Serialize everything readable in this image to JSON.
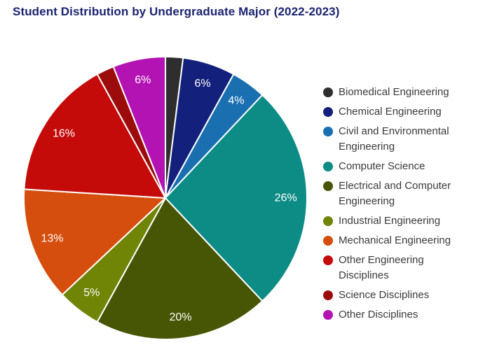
{
  "title": "Student Distribution by Undergraduate Major (2022-2023)",
  "chart_data": {
    "type": "pie",
    "title": "Student Distribution by Undergraduate Major (2022-2023)",
    "categories": [
      "Biomedical Engineering",
      "Chemical Engineering",
      "Civil and Environmental Engineering",
      "Computer Science",
      "Electrical and Computer Engineering",
      "Industrial Engineering",
      "Mechanical Engineering",
      "Other Engineering Disciplines",
      "Science Disciplines",
      "Other Disciplines"
    ],
    "values": [
      2,
      6,
      4,
      26,
      20,
      5,
      13,
      16,
      2,
      6
    ],
    "unit": "percent",
    "slice_labels": [
      "",
      "6%",
      "4%",
      "26%",
      "20%",
      "5%",
      "13%",
      "16%",
      "",
      "6%"
    ],
    "colors": [
      "#2e2e2e",
      "#13217d",
      "#1a6fb0",
      "#0d8c85",
      "#475604",
      "#708406",
      "#d54e0d",
      "#c50a0a",
      "#9c0c0c",
      "#b413b4"
    ],
    "start_position": "12-oclock",
    "direction": "clockwise",
    "legend_position": "right",
    "label_color": "#ffffff",
    "slice_border_color": "#ffffff"
  },
  "styles": {
    "title_color": "#1b2370",
    "legend_text_color": "#3a3a3a",
    "background": "#ffffff"
  }
}
